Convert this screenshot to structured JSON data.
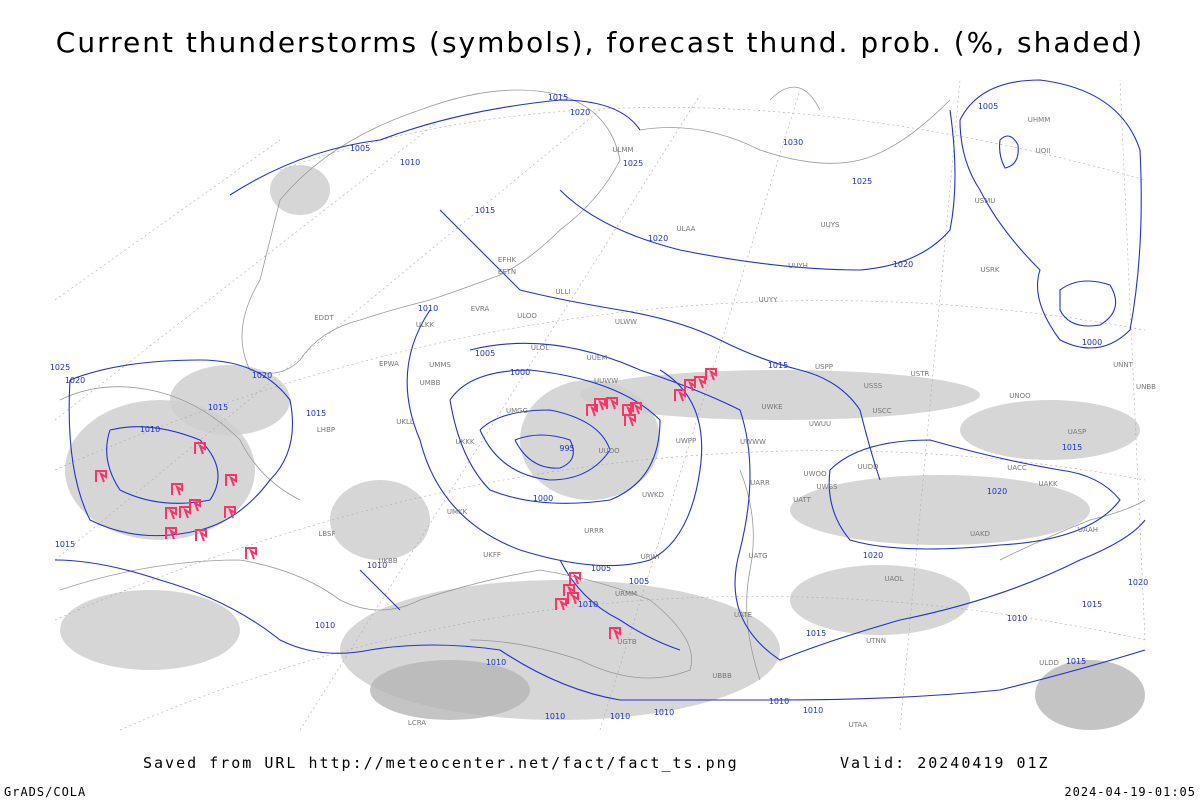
{
  "header": {
    "title": "Current thunderstorms (symbols), forecast thund. prob. (%, shaded)"
  },
  "footer": {
    "source": "Saved from URL http://meteocenter.net/fact/fact_ts.png",
    "valid": "Valid: 20240419 01Z",
    "left": "GrADS/COLA",
    "timestamp": "2024-04-19-01:05"
  },
  "isobar_labels": [
    "1015",
    "1020",
    "1005",
    "1010",
    "1025",
    "1030",
    "1025",
    "1015",
    "1020",
    "1020",
    "1005",
    "1000",
    "1010",
    "1005",
    "1000",
    "995",
    "1000",
    "1020",
    "1015",
    "1015",
    "1010",
    "1020",
    "1015",
    "1025",
    "1015",
    "1015",
    "1020",
    "1020",
    "1005",
    "1005",
    "1010",
    "1010",
    "1010",
    "1015",
    "1010",
    "1015",
    "1015",
    "1010",
    "1010",
    "1010",
    "1010",
    "1010",
    "1010",
    "1020"
  ],
  "stations": [
    "ULOO",
    "ULOL",
    "UUEM",
    "UUWW",
    "ULWW",
    "ULKK",
    "UUYY",
    "UUYH",
    "UUYS",
    "ULAA",
    "ULMM",
    "USSS",
    "USCC",
    "USTR",
    "UNOO",
    "UACC",
    "UAKK",
    "UAAH",
    "URRR",
    "URWI",
    "UKBB",
    "UKKK",
    "UMMS",
    "UMBB",
    "EVRA",
    "EETN",
    "EFHK",
    "ULLI",
    "UMGG",
    "UUOO",
    "UWWW",
    "UWKE",
    "UWUU",
    "UWOO",
    "UWSS",
    "UATT",
    "UARR",
    "UATG",
    "UAOL",
    "UTAA",
    "UTNN",
    "UBBB",
    "UGTB",
    "ULDD",
    "USPP",
    "USMU",
    "USRK",
    "UNNT",
    "UNBB",
    "UASP",
    "UAKD",
    "UATE",
    "URMM",
    "UKFF",
    "LCRA",
    "EPWA",
    "UMKK",
    "UKLL",
    "LBSF",
    "LHBP",
    "EDDT",
    "UUDD",
    "UWPP",
    "UWKD",
    "UHMM",
    "UOII"
  ]
}
